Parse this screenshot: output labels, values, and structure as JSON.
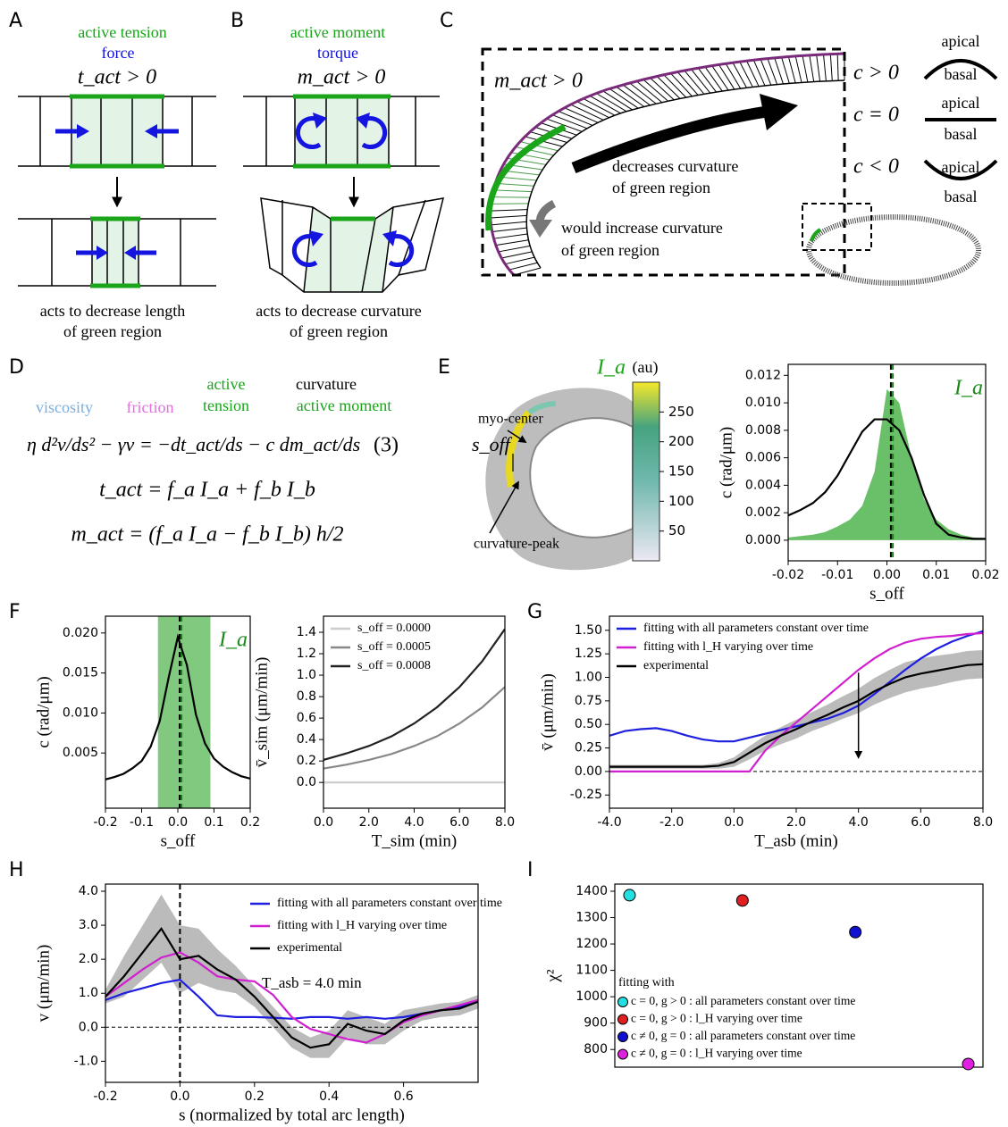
{
  "panel_letters": [
    "A",
    "B",
    "C",
    "D",
    "E",
    "F",
    "G",
    "H",
    "I"
  ],
  "panels": {
    "A": {
      "title": "active tension",
      "subtitle": "force",
      "condition": "t_act > 0",
      "caption": [
        "acts to decrease length",
        "of green region"
      ]
    },
    "B": {
      "title": "active moment",
      "subtitle": "torque",
      "condition": "m_act > 0",
      "caption": [
        "acts to decrease curvature",
        "of green region"
      ]
    },
    "C": {
      "condition": "m_act > 0",
      "note_green": [
        "decreases curvature",
        "of green region"
      ],
      "note_gray": [
        "would increase curvature",
        "of green region"
      ],
      "curvature_key": [
        {
          "condition": "c > 0",
          "top": "apical",
          "bottom": "basal"
        },
        {
          "condition": "c = 0",
          "top": "apical",
          "bottom": "basal"
        },
        {
          "condition": "c < 0",
          "top": "apical",
          "bottom": "basal"
        }
      ]
    },
    "D": {
      "terms": [
        "viscosity",
        "friction",
        "active",
        "tension",
        "curvature",
        "active moment"
      ],
      "equations": [
        "η d²v/ds² − γv = −dt_act/ds − c dm_act/ds",
        "(3)",
        "t_act = f_a I_a + f_b I_b",
        "m_act = (f_a I_a − f_b I_b) h/2"
      ]
    },
    "E": {
      "labels": [
        "myo-center",
        "s_off",
        "curvature-peak"
      ],
      "colorbar": {
        "label": "I_a",
        "unit": "(au)",
        "lim": [
          0,
          300
        ],
        "ticks": [
          50,
          100,
          150,
          200,
          250
        ]
      }
    }
  },
  "chart_data": [
    {
      "type": "line",
      "xlabel": "s_off",
      "ylabel": "c (rad/μm)",
      "annotation": "I_a",
      "x": [
        -0.02,
        -0.0175,
        -0.015,
        -0.0125,
        -0.01,
        -0.0075,
        -0.005,
        -0.0025,
        0,
        0.0025,
        0.005,
        0.0075,
        0.01,
        0.0125,
        0.015,
        0.0175,
        0.02
      ],
      "series": [
        {
          "style": "area",
          "color": "#6abf69",
          "values": [
            0.0002,
            0.0003,
            0.0004,
            0.0006,
            0.001,
            0.0015,
            0.0025,
            0.005,
            0.011,
            0.01,
            0.006,
            0.003,
            0.0015,
            0.0008,
            0.0004,
            0.0002,
            0.0001
          ]
        },
        {
          "style": "line",
          "color": "#000000",
          "values": [
            0.0018,
            0.0022,
            0.0027,
            0.0035,
            0.0047,
            0.0063,
            0.0079,
            0.0088,
            0.0088,
            0.008,
            0.006,
            0.0033,
            0.0012,
            0.0004,
            0.0002,
            0.0001,
            0.0001
          ]
        }
      ],
      "vlines": [
        {
          "x": 0.0012,
          "color": "#1a7f1a"
        },
        {
          "x": 0.0008,
          "color": "#000000"
        }
      ],
      "xlim": [
        -0.02,
        0.02
      ],
      "xticks": [
        -0.02,
        -0.01,
        {
          "value": 0,
          "label": "0.00"
        },
        0.01,
        0.02
      ],
      "ylim": [
        -0.0015,
        0.0128
      ],
      "yticks": [
        {
          "value": 0,
          "label": "0.000"
        },
        0.002,
        0.004,
        0.006,
        0.008,
        {
          "value": 0.01,
          "label": "0.010"
        },
        0.012
      ]
    },
    {
      "type": "line",
      "xlabel": "s_off",
      "ylabel": "c (rad/μm)",
      "annotation": "I_a",
      "x": [
        -0.2,
        -0.175,
        -0.15,
        -0.125,
        -0.1,
        -0.075,
        -0.05,
        -0.025,
        0,
        0.025,
        0.05,
        0.075,
        0.1,
        0.125,
        0.15,
        0.175,
        0.2
      ],
      "series": [
        {
          "style": "line",
          "color": "#000000",
          "values": [
            0.0017,
            0.002,
            0.0024,
            0.0031,
            0.004,
            0.0058,
            0.009,
            0.0145,
            0.0195,
            0.016,
            0.0098,
            0.0062,
            0.0043,
            0.0033,
            0.0026,
            0.0021,
            0.0018
          ]
        }
      ],
      "band": {
        "x": [
          -0.055,
          0.09
        ],
        "color": "#6abf69"
      },
      "vlines": [
        {
          "x": 0.005,
          "color": "#000000"
        },
        {
          "x": 0.01,
          "color": "#1a7f1a"
        }
      ],
      "xlim": [
        -0.2,
        0.2
      ],
      "xticks": [
        -0.2,
        -0.1,
        {
          "value": 0,
          "label": "0.0"
        },
        0.1,
        0.2
      ],
      "ylim": [
        -0.0019,
        0.0221
      ],
      "yticks": [
        0.005,
        {
          "value": 0.01,
          "label": "0.010"
        },
        0.015,
        {
          "value": 0.02,
          "label": "0.020"
        }
      ]
    },
    {
      "type": "line",
      "xlabel": "T_sim (min)",
      "ylabel": "v̄_sim (μm/min)",
      "legend": "upper left",
      "x": [
        0,
        1,
        2,
        3,
        4,
        5,
        6,
        7,
        8
      ],
      "series": [
        {
          "name": "s_off = 0.0000",
          "color": "#cccccc",
          "values": [
            0,
            0,
            0,
            0,
            0,
            0,
            0,
            0,
            0
          ]
        },
        {
          "name": "s_off = 0.0005",
          "color": "#888888",
          "values": [
            0.13,
            0.165,
            0.21,
            0.265,
            0.34,
            0.43,
            0.55,
            0.7,
            0.89
          ]
        },
        {
          "name": "s_off = 0.0008",
          "color": "#222222",
          "values": [
            0.21,
            0.27,
            0.34,
            0.43,
            0.55,
            0.7,
            0.89,
            1.13,
            1.43
          ]
        }
      ],
      "xlim": [
        0,
        8
      ],
      "xticks": [
        {
          "value": 0,
          "label": "0.0"
        },
        {
          "value": 2,
          "label": "2.0"
        },
        {
          "value": 4,
          "label": "4.0"
        },
        {
          "value": 6,
          "label": "6.0"
        },
        {
          "value": 8,
          "label": "8.0"
        }
      ],
      "ylim": [
        -0.24,
        1.55
      ],
      "yticks": [
        {
          "value": 0,
          "label": "0.0"
        },
        0.2,
        0.4,
        0.6,
        0.8,
        {
          "value": 1,
          "label": "1.0"
        },
        1.2,
        1.4
      ]
    },
    {
      "type": "line",
      "xlabel": "T_asb (min)",
      "ylabel": "v̄ (μm/min)",
      "legend": "upper left",
      "x": [
        -4,
        -3.5,
        -3,
        -2.5,
        -2,
        -1.5,
        -1,
        -0.5,
        0,
        0.5,
        1,
        1.5,
        2,
        2.5,
        3,
        3.5,
        4,
        4.5,
        5,
        5.5,
        6,
        6.5,
        7,
        7.5,
        8
      ],
      "series": [
        {
          "name": "fitting with all parameters constant over time",
          "color": "#1f1fe0",
          "values": [
            0.38,
            0.43,
            0.45,
            0.46,
            0.43,
            0.38,
            0.34,
            0.32,
            0.32,
            0.36,
            0.4,
            0.44,
            0.48,
            0.52,
            0.56,
            0.62,
            0.7,
            0.82,
            0.95,
            1.08,
            1.2,
            1.3,
            1.38,
            1.44,
            1.49
          ]
        },
        {
          "name": "fitting with l_H varying over time",
          "color": "#d020d0",
          "values": [
            0,
            0,
            0,
            0,
            0,
            0,
            0,
            0,
            0,
            0,
            0.22,
            0.38,
            0.52,
            0.66,
            0.8,
            0.94,
            1.08,
            1.2,
            1.3,
            1.37,
            1.41,
            1.43,
            1.44,
            1.46,
            1.47
          ]
        },
        {
          "name": "experimental",
          "color": "#000000",
          "band_color": "#bbbbbb",
          "values": [
            0.05,
            0.05,
            0.05,
            0.05,
            0.05,
            0.05,
            0.05,
            0.06,
            0.1,
            0.2,
            0.3,
            0.38,
            0.45,
            0.53,
            0.6,
            0.68,
            0.75,
            0.85,
            0.93,
            1,
            1.04,
            1.07,
            1.1,
            1.13,
            1.14
          ],
          "error": [
            0.02,
            0.02,
            0.02,
            0.02,
            0.02,
            0.02,
            0.02,
            0.03,
            0.05,
            0.07,
            0.08,
            0.09,
            0.1,
            0.1,
            0.11,
            0.12,
            0.13,
            0.14,
            0.15,
            0.16,
            0.16,
            0.16,
            0.15,
            0.15,
            0.15
          ]
        }
      ],
      "hlines": [
        0
      ],
      "arrow": {
        "x": 4,
        "y": [
          1.05,
          0.15
        ]
      },
      "xlim": [
        -4,
        8
      ],
      "xticks": [
        {
          "value": -4,
          "label": "-4.0"
        },
        {
          "value": -2,
          "label": "-2.0"
        },
        {
          "value": 0,
          "label": "0.0"
        },
        {
          "value": 2,
          "label": "2.0"
        },
        {
          "value": 4,
          "label": "4.0"
        },
        {
          "value": 6,
          "label": "6.0"
        },
        {
          "value": 8,
          "label": "8.0"
        }
      ],
      "ylim": [
        -0.39,
        1.65
      ],
      "yticks": [
        -0.25,
        {
          "value": 0,
          "label": "0.00"
        },
        0.25,
        {
          "value": 0.5,
          "label": "0.50"
        },
        0.75,
        {
          "value": 1,
          "label": "1.00"
        },
        1.25,
        {
          "value": 1.5,
          "label": "1.50"
        }
      ]
    },
    {
      "type": "line",
      "xlabel": "s (normalized by total arc length)",
      "ylabel": "v (μm/min)",
      "legend": "upper right",
      "annotation": "T_asb = 4.0 min",
      "x": [
        -0.2,
        -0.15,
        -0.1,
        -0.05,
        0,
        0.05,
        0.1,
        0.15,
        0.2,
        0.25,
        0.3,
        0.35,
        0.4,
        0.45,
        0.5,
        0.55,
        0.6,
        0.65,
        0.7,
        0.75,
        0.8
      ],
      "series": [
        {
          "name": "fitting with all parameters constant over time",
          "color": "#1f1fe0",
          "values": [
            0.8,
            1,
            1.15,
            1.3,
            1.4,
            0.9,
            0.35,
            0.3,
            0.3,
            0.28,
            0.25,
            0.3,
            0.3,
            0.25,
            0.3,
            0.25,
            0.3,
            0.4,
            0.5,
            0.6,
            0.75
          ]
        },
        {
          "name": "fitting with l_H varying over time",
          "color": "#d020d0",
          "values": [
            0.9,
            1.3,
            1.7,
            2.05,
            2.2,
            1.9,
            1.5,
            1.4,
            1.35,
            0.95,
            0.3,
            -0.05,
            -0.2,
            -0.35,
            -0.45,
            -0.2,
            0.15,
            0.35,
            0.5,
            0.65,
            0.8
          ]
        },
        {
          "name": "experimental",
          "color": "#000000",
          "band_color": "#bbbbbb",
          "values": [
            0.9,
            1.5,
            2.2,
            2.9,
            2,
            2.1,
            1.7,
            1.4,
            0.9,
            0.3,
            -0.3,
            -0.6,
            -0.5,
            0.1,
            -0.1,
            -0.2,
            0.2,
            0.4,
            0.5,
            0.55,
            0.75
          ],
          "error": [
            0.2,
            0.6,
            0.8,
            1,
            1,
            0.8,
            0.6,
            0.4,
            0.3,
            0.3,
            0.3,
            0.3,
            0.4,
            0.4,
            0.4,
            0.3,
            0.3,
            0.2,
            0.2,
            0.2,
            0.2
          ]
        }
      ],
      "hlines": [
        0
      ],
      "vlines": [
        {
          "x": 0,
          "color": "#000000"
        }
      ],
      "xlim": [
        -0.2,
        0.8
      ],
      "xticks": [
        -0.2,
        {
          "value": 0,
          "label": "0.0"
        },
        0.2,
        0.4,
        0.6
      ],
      "ylim": [
        -1.62,
        4.21
      ],
      "yticks": [
        {
          "value": -1,
          "label": "-1.0"
        },
        {
          "value": 0,
          "label": "0.0"
        },
        {
          "value": 1,
          "label": "1.0"
        },
        {
          "value": 2,
          "label": "2.0"
        },
        {
          "value": 3,
          "label": "3.0"
        },
        {
          "value": 4,
          "label": "4.0"
        }
      ]
    },
    {
      "type": "scatter",
      "ylabel": "χ²",
      "legend": "lower left",
      "legend_title": "fitting with",
      "series": [
        {
          "name": "c = 0, g > 0 : all parameters constant over time",
          "color": "#22e0e0",
          "values": [
            1385
          ]
        },
        {
          "name": "c = 0, g > 0 : l_H varying over time",
          "color": "#e02020",
          "values": [
            1365
          ]
        },
        {
          "name": "c ≠ 0, g = 0 : all parameters constant over time",
          "color": "#1010d0",
          "values": [
            1245
          ]
        },
        {
          "name": "c ≠ 0, g = 0 : l_H varying over time",
          "color": "#e020e0",
          "values": [
            745
          ]
        }
      ],
      "ylim": [
        733,
        1427
      ],
      "yticks": [
        800,
        900,
        1000,
        1100,
        1200,
        1300,
        1400
      ]
    }
  ]
}
